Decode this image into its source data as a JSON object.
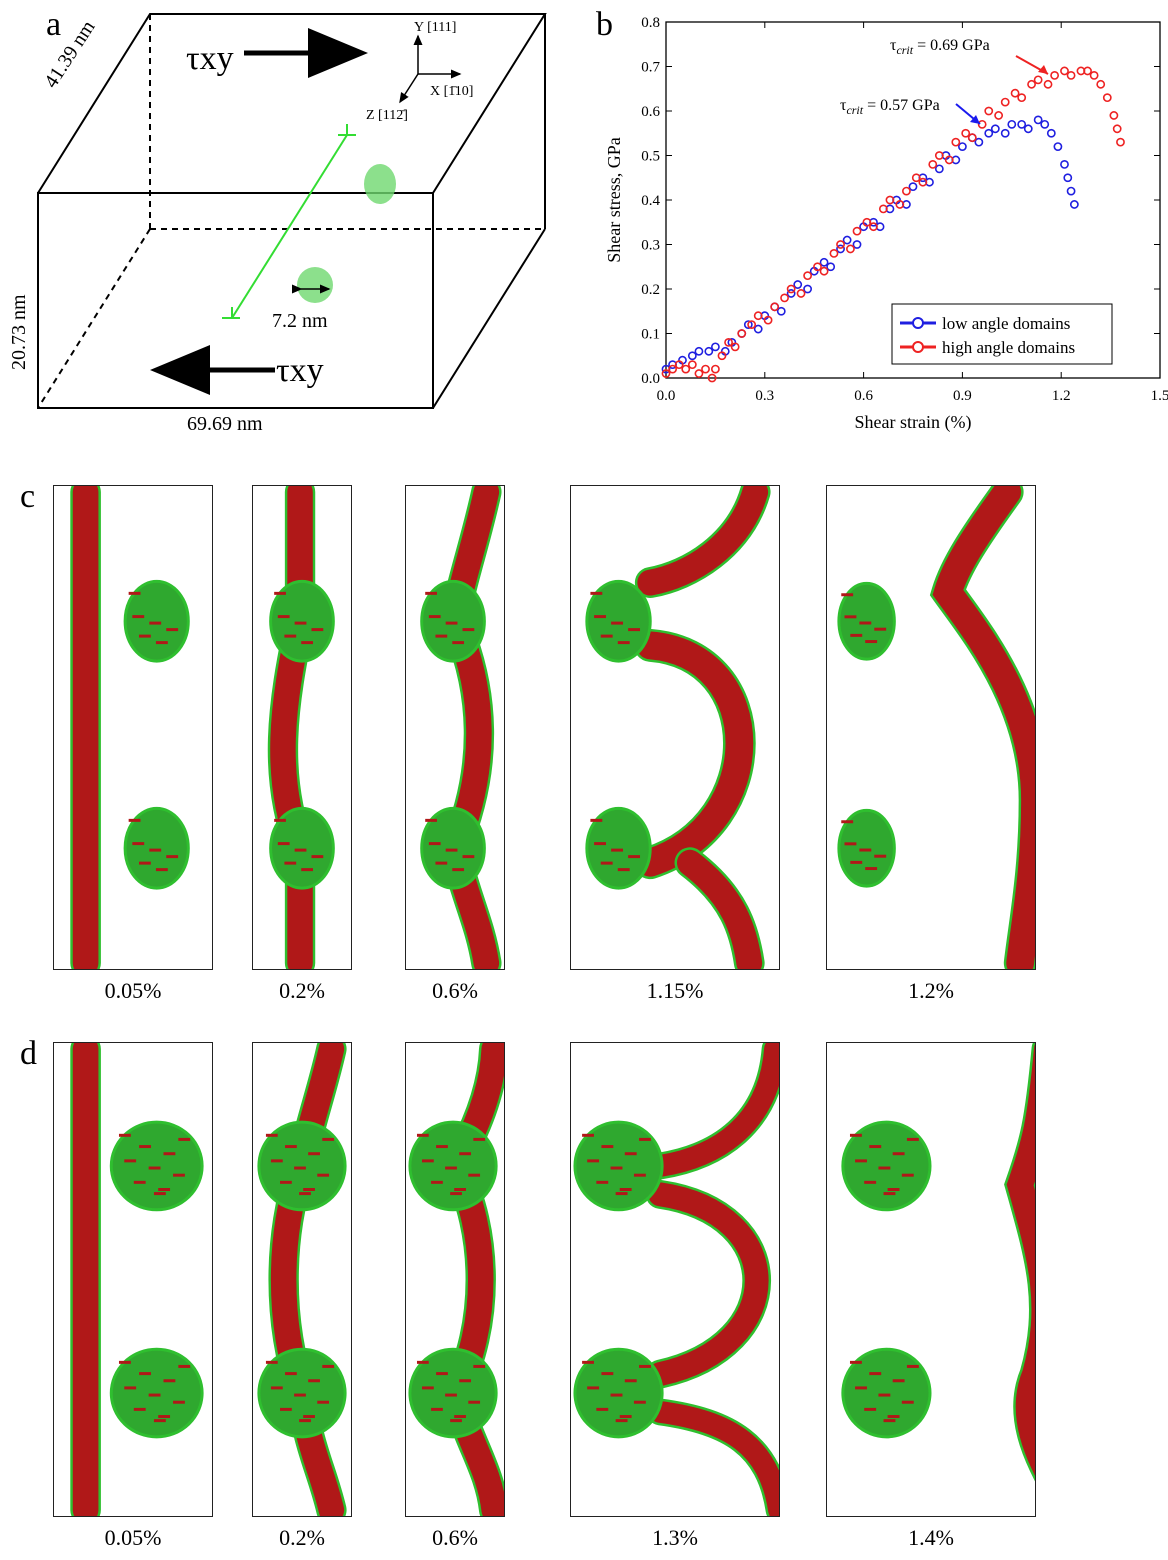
{
  "panels": {
    "a": "a",
    "b": "b",
    "c": "c",
    "d": "d"
  },
  "panel_a": {
    "dim_depth": "41.39 nm",
    "dim_height": "20.73 nm",
    "dim_width": "69.69 nm",
    "particle_diameter": "7.2 nm",
    "tau_top": "τxy",
    "tau_bottom": "τxy",
    "axis_y": "Y [111]",
    "axis_x": "X [1̄10]",
    "axis_z": "Z [112̄]"
  },
  "chart_data": {
    "type": "scatter",
    "xlabel": "Shear strain (%)",
    "ylabel": "Shear stress, GPa",
    "xlim": [
      0,
      1.5
    ],
    "ylim": [
      0,
      0.8
    ],
    "xticks": [
      "0.0",
      "0.3",
      "0.6",
      "0.9",
      "1.2",
      "1.5"
    ],
    "yticks": [
      "0.0",
      "0.1",
      "0.2",
      "0.3",
      "0.4",
      "0.5",
      "0.6",
      "0.7",
      "0.8"
    ],
    "legend_position": "bottom-right",
    "annotations": [
      {
        "text_prefix": "τ",
        "text_sub": "crit",
        "text_suffix": " = 0.69 GPa",
        "x": 1.28,
        "y": 0.69,
        "color": "#ee2222"
      },
      {
        "text_prefix": "τ",
        "text_sub": "crit",
        "text_suffix": " = 0.57 GPa",
        "x": 1.12,
        "y": 0.57,
        "color": "#1a1aee"
      }
    ],
    "series": [
      {
        "name": "low angle domains",
        "color": "#1f1fe0",
        "x": [
          0.0,
          0.02,
          0.05,
          0.08,
          0.1,
          0.13,
          0.15,
          0.18,
          0.2,
          0.23,
          0.25,
          0.28,
          0.3,
          0.33,
          0.35,
          0.38,
          0.4,
          0.43,
          0.45,
          0.48,
          0.5,
          0.53,
          0.55,
          0.58,
          0.6,
          0.63,
          0.65,
          0.68,
          0.7,
          0.73,
          0.75,
          0.78,
          0.8,
          0.83,
          0.85,
          0.88,
          0.9,
          0.93,
          0.95,
          0.98,
          1.0,
          1.03,
          1.05,
          1.08,
          1.1,
          1.13,
          1.15,
          1.17,
          1.19,
          1.21,
          1.22,
          1.23,
          1.24
        ],
        "y": [
          0.02,
          0.03,
          0.04,
          0.05,
          0.06,
          0.06,
          0.07,
          0.06,
          0.08,
          0.1,
          0.12,
          0.11,
          0.14,
          0.16,
          0.15,
          0.19,
          0.21,
          0.2,
          0.24,
          0.26,
          0.25,
          0.29,
          0.31,
          0.3,
          0.34,
          0.35,
          0.34,
          0.38,
          0.4,
          0.39,
          0.43,
          0.45,
          0.44,
          0.47,
          0.5,
          0.49,
          0.52,
          0.54,
          0.53,
          0.55,
          0.56,
          0.55,
          0.57,
          0.57,
          0.56,
          0.58,
          0.57,
          0.55,
          0.52,
          0.48,
          0.45,
          0.42,
          0.39
        ]
      },
      {
        "name": "high angle domains",
        "color": "#ee2222",
        "x": [
          0.0,
          0.02,
          0.04,
          0.06,
          0.08,
          0.1,
          0.12,
          0.14,
          0.15,
          0.17,
          0.19,
          0.21,
          0.23,
          0.26,
          0.28,
          0.31,
          0.33,
          0.36,
          0.38,
          0.41,
          0.43,
          0.46,
          0.48,
          0.51,
          0.53,
          0.56,
          0.58,
          0.61,
          0.63,
          0.66,
          0.68,
          0.71,
          0.73,
          0.76,
          0.78,
          0.81,
          0.83,
          0.86,
          0.88,
          0.91,
          0.93,
          0.96,
          0.98,
          1.01,
          1.03,
          1.06,
          1.08,
          1.11,
          1.13,
          1.16,
          1.18,
          1.21,
          1.23,
          1.26,
          1.28,
          1.3,
          1.32,
          1.34,
          1.36,
          1.37,
          1.38
        ],
        "y": [
          0.01,
          0.02,
          0.03,
          0.02,
          0.03,
          0.01,
          0.02,
          0.0,
          0.02,
          0.05,
          0.08,
          0.07,
          0.1,
          0.12,
          0.14,
          0.13,
          0.16,
          0.18,
          0.2,
          0.19,
          0.23,
          0.25,
          0.24,
          0.28,
          0.3,
          0.29,
          0.33,
          0.35,
          0.34,
          0.38,
          0.4,
          0.39,
          0.42,
          0.45,
          0.44,
          0.48,
          0.5,
          0.49,
          0.53,
          0.55,
          0.54,
          0.57,
          0.6,
          0.59,
          0.62,
          0.64,
          0.63,
          0.66,
          0.67,
          0.66,
          0.68,
          0.69,
          0.68,
          0.69,
          0.69,
          0.68,
          0.66,
          0.63,
          0.59,
          0.56,
          0.53
        ]
      }
    ]
  },
  "row_c": {
    "strains": [
      "0.05%",
      "0.2%",
      "0.6%",
      "1.15%",
      "1.2%"
    ]
  },
  "row_d": {
    "strains": [
      "0.05%",
      "0.2%",
      "0.6%",
      "1.3%",
      "1.4%"
    ]
  },
  "colors": {
    "dislocation": "#b01818",
    "atom_green": "#2fbf2f",
    "particle_green": "#2fa82f"
  }
}
